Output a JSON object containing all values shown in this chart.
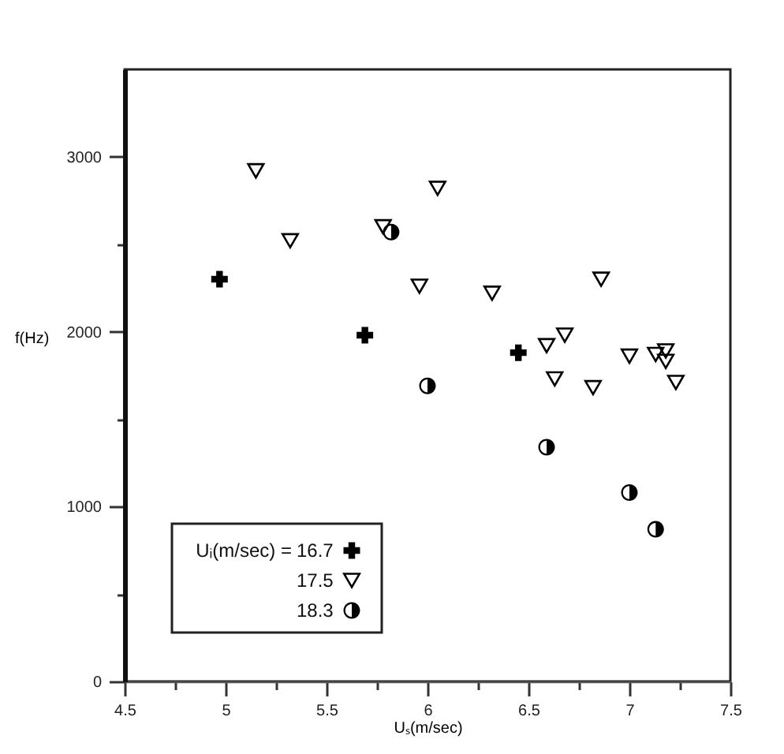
{
  "chart_data": {
    "type": "scatter",
    "xlabel": "Uₛ(m/sec)",
    "ylabel": "f(Hz)",
    "legend_title": "Uᵢ(m/sec) =",
    "legend": "bottom left",
    "grid": false,
    "xlim": [
      4.5,
      7.5
    ],
    "ylim": [
      0,
      3500
    ],
    "xticks": [
      4.5,
      {
        "value": 4.75,
        "label": null
      },
      5,
      {
        "value": 5.25,
        "label": null
      },
      5.5,
      {
        "value": 5.75,
        "label": null
      },
      6,
      {
        "value": 6.25,
        "label": null
      },
      6.5,
      {
        "value": 6.75,
        "label": null
      },
      7,
      {
        "value": 7.25,
        "label": null
      },
      7.5
    ],
    "yticks": [
      0,
      {
        "value": 500,
        "label": null
      },
      1000,
      {
        "value": 1500,
        "label": null
      },
      2000,
      {
        "value": 2500,
        "label": null
      },
      3000
    ],
    "series": [
      {
        "name": "16.7",
        "color": "#000000",
        "marker": "cross",
        "x": [
          4.97,
          5.69,
          6.45
        ],
        "values": [
          2300,
          1980,
          1880
        ]
      },
      {
        "name": "17.5",
        "color": "#000000",
        "marker": "triangle",
        "x": [
          5.15,
          5.32,
          5.78,
          5.96,
          6.05,
          6.32,
          6.59,
          6.63,
          6.68,
          6.82,
          6.86,
          7.0,
          7.13,
          7.18,
          7.18,
          7.23
        ],
        "values": [
          2920,
          2520,
          2600,
          2260,
          2820,
          2220,
          1920,
          1730,
          1980,
          1680,
          2300,
          1860,
          1870,
          1890,
          1830,
          1710
        ]
      },
      {
        "name": "18.3",
        "color": "#000000",
        "marker": "circle",
        "x": [
          5.82,
          6.0,
          6.59,
          7.0,
          7.13
        ],
        "values": [
          2570,
          1690,
          1340,
          1080,
          870
        ]
      }
    ]
  }
}
